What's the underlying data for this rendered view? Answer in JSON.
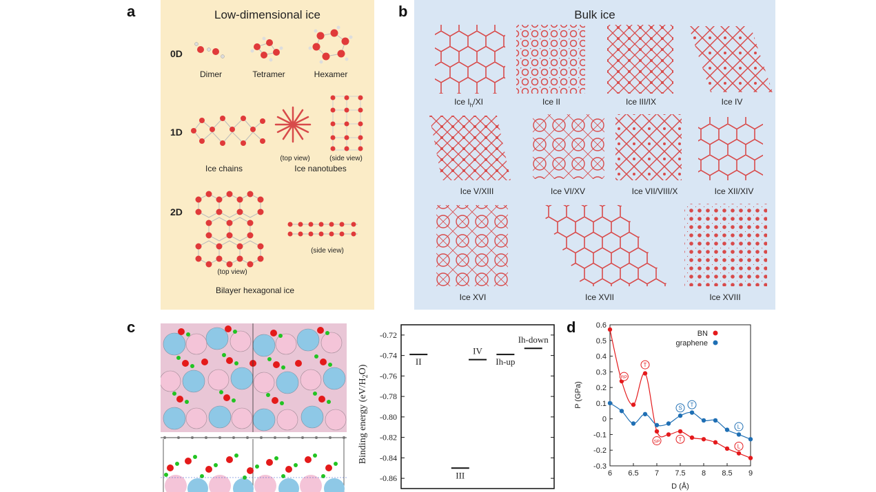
{
  "panel_a": {
    "letter": "a",
    "title": "Low-dimensional ice",
    "row_labels": [
      "0D",
      "1D",
      "2D"
    ],
    "captions": {
      "dimer": "Dimer",
      "tetramer": "Tetramer",
      "hexamer": "Hexamer",
      "ice_chains": "Ice chains",
      "top_view_1d": "(top view)",
      "side_view_1d": "(side view)",
      "ice_nanotubes": "Ice nanotubes",
      "side_view_2d": "(side view)",
      "top_view_2d": "(top view)",
      "bilayer": "Bilayer hexagonal ice"
    },
    "colors": {
      "background": "#fbecc7",
      "oxygen": "#e03a3a",
      "hydrogen": "#e8e8e8"
    }
  },
  "panel_b": {
    "letter": "b",
    "title": "Bulk ice",
    "phases_row1": [
      "Ice Ih/XI",
      "Ice II",
      "Ice III/IX",
      "Ice IV"
    ],
    "phases_row2": [
      "Ice V/XIII",
      "Ice VI/XV",
      "Ice VII/VIII/X",
      "Ice XII/XIV"
    ],
    "phases_row3": [
      "Ice XVI",
      "Ice XVII",
      "Ice XVIII"
    ],
    "colors": {
      "background": "#d9e6f4",
      "lattice": "#d84a4a"
    }
  },
  "panel_c": {
    "letter": "c",
    "colors": {
      "pink": "#f2c3d6",
      "blue": "#8ec8e6",
      "oxygen": "#e41a1a",
      "hydrogen": "#22c422"
    }
  },
  "panel_d": {
    "letter": "d"
  },
  "chart_data": [
    {
      "type": "scatter",
      "name": "binding-energy-levels",
      "ylabel": "Binding energy (eV/H2O)",
      "ylim": [
        -0.87,
        -0.71
      ],
      "yticks": [
        "-0.72",
        "-0.74",
        "-0.76",
        "-0.78",
        "-0.80",
        "-0.82",
        "-0.84",
        "-0.86"
      ],
      "ytick_values": [
        -0.72,
        -0.74,
        -0.76,
        -0.78,
        -0.8,
        -0.82,
        -0.84,
        -0.86
      ],
      "levels": [
        {
          "label": "II",
          "value": -0.739,
          "slot": 0.5
        },
        {
          "label": "III",
          "value": -0.85,
          "slot": 1.7
        },
        {
          "label": "IV",
          "value": -0.744,
          "slot": 2.2
        },
        {
          "label": "Ih-up",
          "value": -0.739,
          "slot": 3.0
        },
        {
          "label": "Ih-down",
          "value": -0.733,
          "slot": 3.8
        }
      ],
      "slot_range": [
        0,
        4.4
      ]
    },
    {
      "type": "line",
      "name": "pressure-vs-distance",
      "xlabel": "D (Å)",
      "ylabel": "P (GPa)",
      "xlim": [
        6,
        9
      ],
      "ylim": [
        -0.3,
        0.6
      ],
      "xticks": [
        "6",
        "6.5",
        "7",
        "7.5",
        "8",
        "8.5",
        "9"
      ],
      "xtick_values": [
        6,
        6.5,
        7,
        7.5,
        8,
        8.5,
        9
      ],
      "yticks": [
        "0.6",
        "0.5",
        "0.4",
        "0.3",
        "0.2",
        "0.1",
        "0",
        "-0.1",
        "-0.2",
        "-0.3"
      ],
      "ytick_values": [
        0.6,
        0.5,
        0.4,
        0.3,
        0.2,
        0.1,
        0,
        -0.1,
        -0.2,
        -0.3
      ],
      "legend": [
        {
          "name": "BN",
          "color": "#e41a1c"
        },
        {
          "name": "graphene",
          "color": "#1f6fb4"
        }
      ],
      "series": [
        {
          "name": "BN",
          "color": "#e41a1c",
          "x": [
            6.0,
            6.25,
            6.5,
            6.75,
            7.0,
            7.25,
            7.5,
            7.75,
            8.0,
            8.25,
            8.5,
            8.75,
            9.0
          ],
          "y": [
            0.57,
            0.24,
            0.09,
            0.29,
            -0.08,
            -0.1,
            -0.08,
            -0.12,
            -0.13,
            -0.15,
            -0.19,
            -0.22,
            -0.25
          ],
          "annotations": [
            {
              "label": "RP",
              "x": 6.3,
              "y": 0.27
            },
            {
              "label": "T",
              "x": 6.75,
              "y": 0.345
            },
            {
              "label": "SP",
              "x": 7.0,
              "y": -0.14
            },
            {
              "label": "T",
              "x": 7.5,
              "y": -0.13
            },
            {
              "label": "L",
              "x": 8.75,
              "y": -0.175
            }
          ]
        },
        {
          "name": "graphene",
          "color": "#1f6fb4",
          "x": [
            6.0,
            6.25,
            6.5,
            6.75,
            7.0,
            7.25,
            7.5,
            7.75,
            8.0,
            8.25,
            8.5,
            8.75,
            9.0
          ],
          "y": [
            0.1,
            0.05,
            -0.03,
            0.03,
            -0.04,
            -0.03,
            0.02,
            0.04,
            -0.01,
            -0.01,
            -0.07,
            -0.1,
            -0.13
          ],
          "annotations": [
            {
              "label": "S",
              "x": 7.5,
              "y": 0.07
            },
            {
              "label": "T",
              "x": 7.75,
              "y": 0.09
            },
            {
              "label": "L",
              "x": 8.75,
              "y": -0.05
            }
          ]
        }
      ]
    }
  ]
}
